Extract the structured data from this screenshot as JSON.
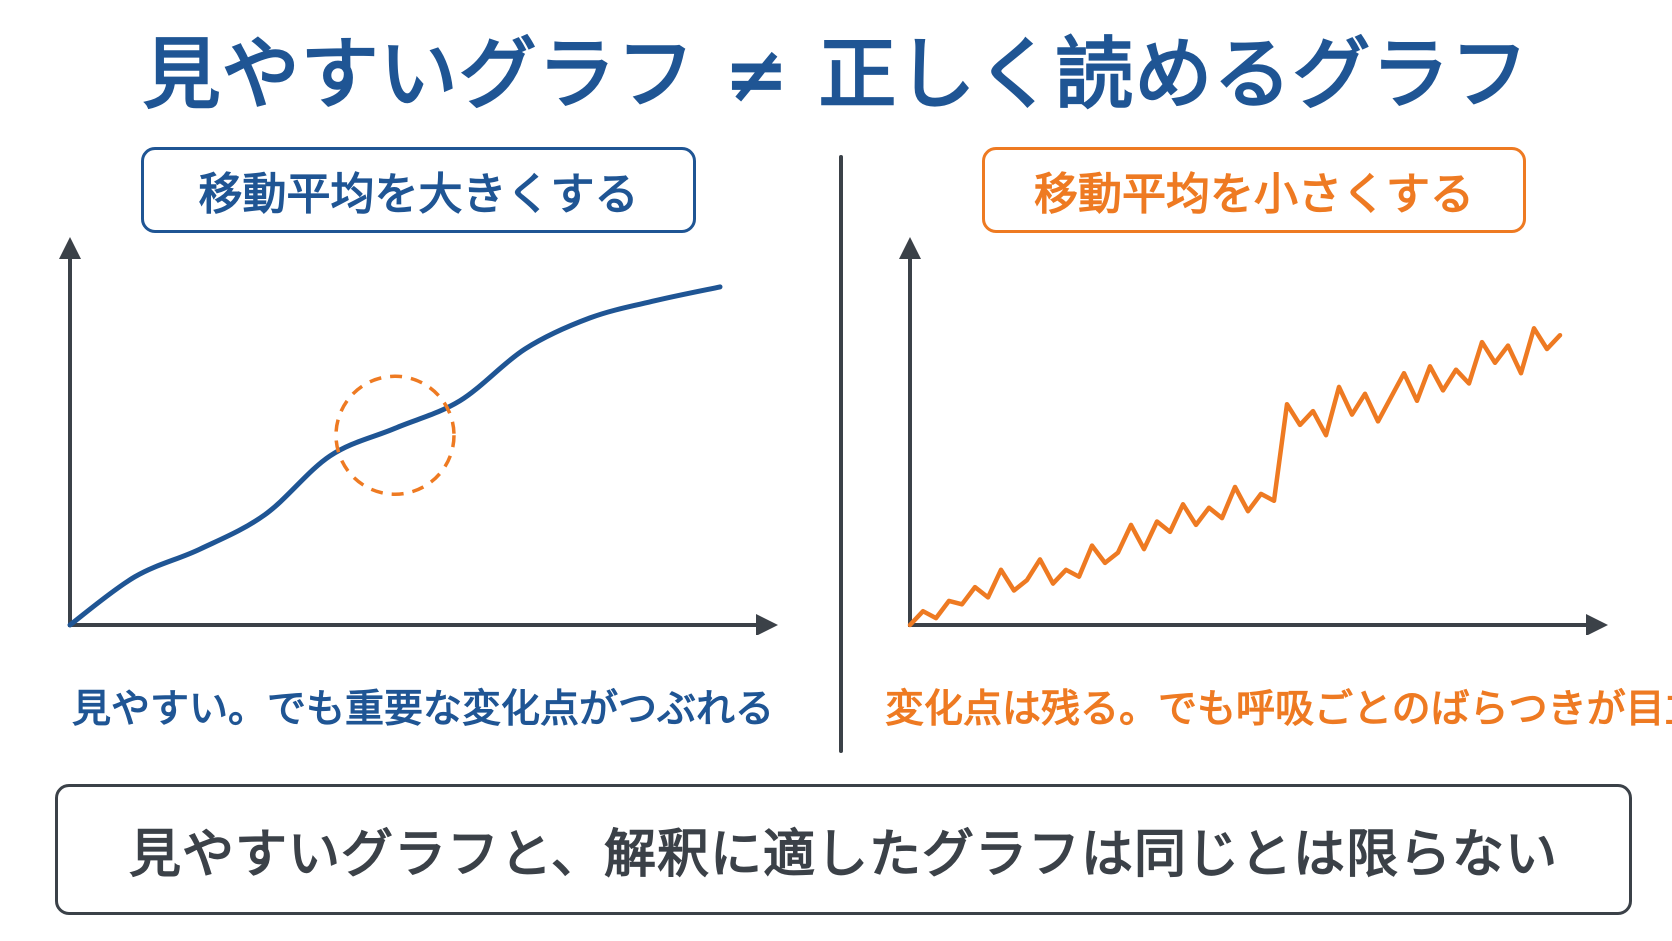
{
  "title": "見やすいグラフ ≠ 正しく読めるグラフ",
  "colors": {
    "blue": "#1f5594",
    "orange": "#ee7a22",
    "axis": "#3b4148"
  },
  "left_panel": {
    "label": "移動平均を大きくする",
    "caption": "見やすい。でも重要な変化点がつぶれる"
  },
  "right_panel": {
    "label": "移動平均を小さくする",
    "caption": "変化点は残る。でも呼吸ごとのばらつきが目立つ"
  },
  "conclusion": "見やすいグラフと、解釈に適したグラフは同じとは限らない",
  "chart_data": [
    {
      "type": "line",
      "xlim": [
        0,
        10
      ],
      "ylim": [
        0,
        10
      ],
      "series": [
        {
          "x": [
            0,
            1,
            2,
            3,
            4,
            5,
            6,
            7,
            8,
            9,
            10
          ],
          "values": [
            0,
            1.4,
            2.2,
            3.2,
            4.9,
            5.7,
            6.5,
            8.0,
            8.9,
            9.4,
            9.8
          ]
        }
      ],
      "highlight": {
        "x": 5,
        "y": 5.5,
        "style": "dashed circle"
      }
    },
    {
      "type": "line",
      "xlim": [
        0,
        10
      ],
      "ylim": [
        0,
        10
      ],
      "series": [
        {
          "x": [
            0,
            0.2,
            0.4,
            0.6,
            0.8,
            1.0,
            1.2,
            1.4,
            1.6,
            1.8,
            2.0,
            2.2,
            2.4,
            2.6,
            2.8,
            3.0,
            3.2,
            3.4,
            3.6,
            3.8,
            4.0,
            4.2,
            4.4,
            4.6,
            4.8,
            5.0,
            5.2,
            5.4,
            5.6,
            5.8,
            6.0,
            6.2,
            6.4,
            6.6,
            6.8,
            7.0,
            7.2,
            7.4,
            7.6,
            7.8,
            8.0,
            8.2,
            8.4,
            8.6,
            8.8,
            9.0,
            9.2,
            9.4,
            9.6,
            9.8,
            10.0
          ],
          "values": [
            0.0,
            0.4,
            0.2,
            0.7,
            0.6,
            1.1,
            0.8,
            1.6,
            1.0,
            1.3,
            1.9,
            1.2,
            1.6,
            1.4,
            2.3,
            1.8,
            2.1,
            2.9,
            2.2,
            3.0,
            2.7,
            3.5,
            2.9,
            3.4,
            3.1,
            4.0,
            3.3,
            3.8,
            3.6,
            6.4,
            5.8,
            6.2,
            5.5,
            6.9,
            6.1,
            6.7,
            5.9,
            6.6,
            7.3,
            6.5,
            7.5,
            6.8,
            7.4,
            7.0,
            8.2,
            7.6,
            8.1,
            7.3,
            8.6,
            8.0,
            8.4
          ]
        }
      ]
    }
  ]
}
